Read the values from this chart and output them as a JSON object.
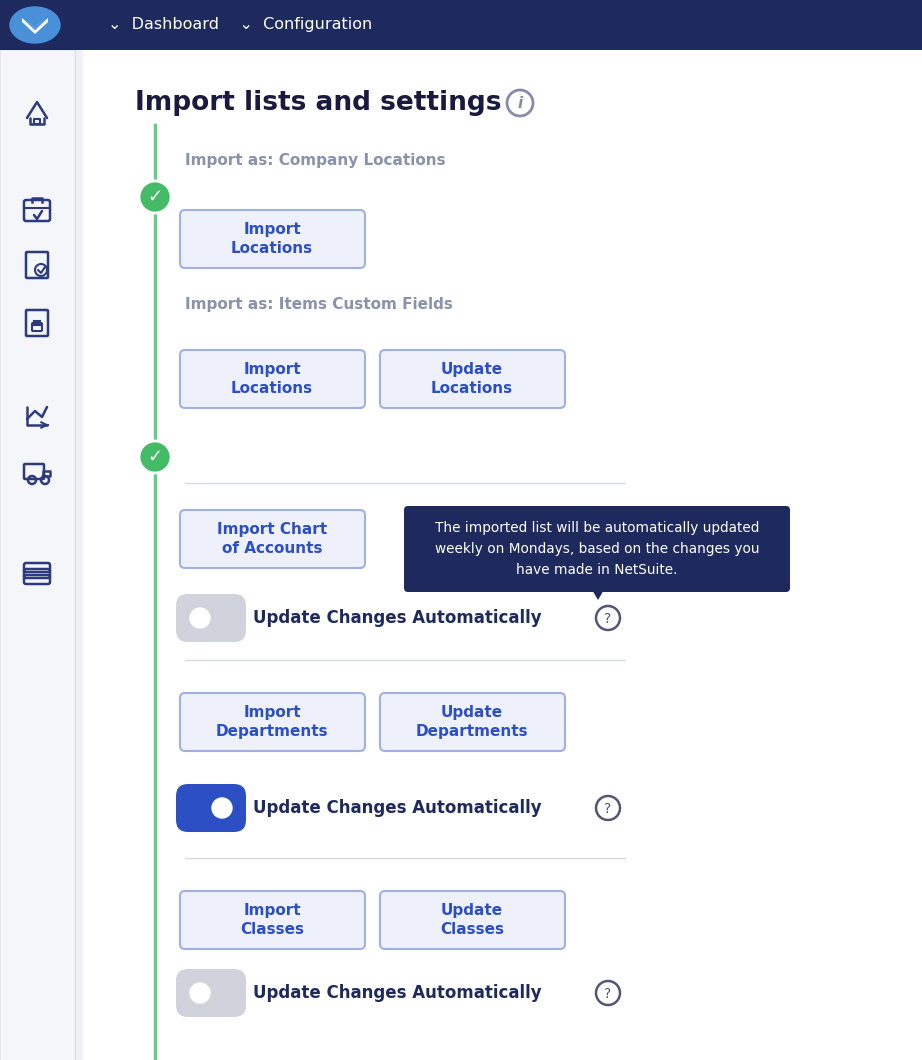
{
  "bg_color": "#f5f6fa",
  "sidebar_color": "#ffffff",
  "topbar_color": "#1e2a5e",
  "content_bg": "#ffffff",
  "title": "Import lists and settings",
  "topbar_text": "⌄  Dashboard    ⌄  Configuration",
  "section1_label": "Import as: Company Locations",
  "section2_label": "Import as: Items Custom Fields",
  "btn_color": "#eef1fb",
  "btn_border": "#a0b0e0",
  "btn_text_color": "#2d4fc4",
  "timeline_color": "#66cc88",
  "check_color": "#44bb66",
  "toggle_off_bg": "#d0d3db",
  "toggle_on_bg": "#2d4fc4",
  "tooltip_bg": "#1e2a5e",
  "tooltip_text": "#ffffff",
  "tooltip_content": "The imported list will be automatically updated\nweekly on Mondays, based on the changes you\nhave made in NetSuite.",
  "divider_color": "#d8dce8",
  "section_label_color": "#8892aa",
  "title_color": "#1a1a3e",
  "text_color": "#1e2a5e",
  "sidebar_icon_color": "#2d3a7c",
  "sidebar_bg": "#f5f6fa"
}
